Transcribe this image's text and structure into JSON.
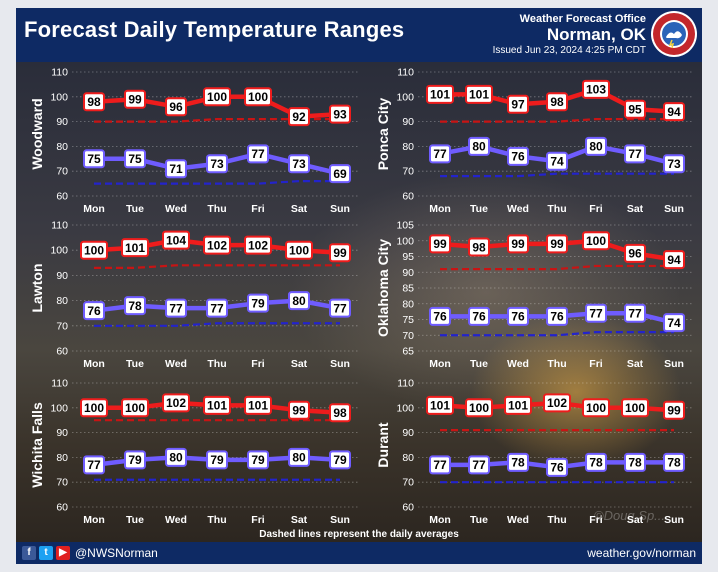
{
  "header": {
    "title": "Forecast Daily Temperature Ranges",
    "office_name": "Weather Forecast Office",
    "office_location": "Norman, OK",
    "issued": "Issued Jun 23, 2024 4:25 PM CDT",
    "seal_icon": "nws-seal-icon"
  },
  "footer": {
    "social_icons": [
      "facebook-icon",
      "twitter-icon",
      "youtube-icon"
    ],
    "handle": "@NWSNorman",
    "website": "weather.gov/norman",
    "note": "Dashed lines represent the daily averages",
    "watermark": "©Doug Sp..."
  },
  "colors": {
    "high": "#ee1c1c",
    "high_avg": "#c81414",
    "low": "#6f5cff",
    "low_avg": "#2323cc",
    "header_bg": "#0e2a64"
  },
  "chart_data": [
    {
      "type": "line",
      "location": "Woodward",
      "categories": [
        "Mon",
        "Tue",
        "Wed",
        "Thu",
        "Fri",
        "Sat",
        "Sun"
      ],
      "ylim": [
        60,
        110
      ],
      "yticks": [
        60,
        70,
        80,
        90,
        100,
        110
      ],
      "grid": true,
      "series": [
        {
          "role": "high",
          "values": [
            98,
            99,
            96,
            100,
            100,
            92,
            93
          ]
        },
        {
          "role": "low",
          "values": [
            75,
            75,
            71,
            73,
            77,
            73,
            69
          ]
        },
        {
          "role": "high_avg",
          "values": [
            90,
            90,
            90,
            91,
            91,
            91,
            91
          ]
        },
        {
          "role": "low_avg",
          "values": [
            65,
            65,
            65,
            65,
            65,
            66,
            66
          ]
        }
      ]
    },
    {
      "type": "line",
      "location": "Ponca City",
      "categories": [
        "Mon",
        "Tue",
        "Wed",
        "Thu",
        "Fri",
        "Sat",
        "Sun"
      ],
      "ylim": [
        60,
        110
      ],
      "yticks": [
        60,
        70,
        80,
        90,
        100,
        110
      ],
      "grid": true,
      "series": [
        {
          "role": "high",
          "values": [
            101,
            101,
            97,
            98,
            103,
            95,
            94
          ]
        },
        {
          "role": "low",
          "values": [
            77,
            80,
            76,
            74,
            80,
            77,
            73
          ]
        },
        {
          "role": "high_avg",
          "values": [
            90,
            90,
            90,
            90,
            91,
            91,
            91
          ]
        },
        {
          "role": "low_avg",
          "values": [
            68,
            68,
            68,
            69,
            69,
            69,
            69
          ]
        }
      ]
    },
    {
      "type": "line",
      "location": "Lawton",
      "categories": [
        "Mon",
        "Tue",
        "Wed",
        "Thu",
        "Fri",
        "Sat",
        "Sun"
      ],
      "ylim": [
        60,
        110
      ],
      "yticks": [
        60,
        70,
        80,
        90,
        100,
        110
      ],
      "grid": true,
      "series": [
        {
          "role": "high",
          "values": [
            100,
            101,
            104,
            102,
            102,
            100,
            99
          ]
        },
        {
          "role": "low",
          "values": [
            76,
            78,
            77,
            77,
            79,
            80,
            77
          ]
        },
        {
          "role": "high_avg",
          "values": [
            93,
            93,
            94,
            94,
            94,
            94,
            94
          ]
        },
        {
          "role": "low_avg",
          "values": [
            70,
            70,
            70,
            71,
            71,
            71,
            71
          ]
        }
      ]
    },
    {
      "type": "line",
      "location": "Oklahoma City",
      "categories": [
        "Mon",
        "Tue",
        "Wed",
        "Thu",
        "Fri",
        "Sat",
        "Sun"
      ],
      "ylim": [
        65,
        105
      ],
      "yticks": [
        65,
        70,
        75,
        80,
        85,
        90,
        95,
        100,
        105
      ],
      "grid": true,
      "series": [
        {
          "role": "high",
          "values": [
            99,
            98,
            99,
            99,
            100,
            96,
            94
          ]
        },
        {
          "role": "low",
          "values": [
            76,
            76,
            76,
            76,
            77,
            77,
            74
          ]
        },
        {
          "role": "high_avg",
          "values": [
            91,
            91,
            91,
            91,
            92,
            92,
            92
          ]
        },
        {
          "role": "low_avg",
          "values": [
            70,
            70,
            70,
            70,
            71,
            71,
            71
          ]
        }
      ]
    },
    {
      "type": "line",
      "location": "Wichita Falls",
      "categories": [
        "Mon",
        "Tue",
        "Wed",
        "Thu",
        "Fri",
        "Sat",
        "Sun"
      ],
      "ylim": [
        60,
        110
      ],
      "yticks": [
        60,
        70,
        80,
        90,
        100,
        110
      ],
      "grid": true,
      "series": [
        {
          "role": "high",
          "values": [
            100,
            100,
            102,
            101,
            101,
            99,
            98
          ]
        },
        {
          "role": "low",
          "values": [
            77,
            79,
            80,
            79,
            79,
            80,
            79
          ]
        },
        {
          "role": "high_avg",
          "values": [
            95,
            95,
            95,
            95,
            95,
            95,
            95
          ]
        },
        {
          "role": "low_avg",
          "values": [
            71,
            71,
            71,
            71,
            71,
            71,
            71
          ]
        }
      ]
    },
    {
      "type": "line",
      "location": "Durant",
      "categories": [
        "Mon",
        "Tue",
        "Wed",
        "Thu",
        "Fri",
        "Sat",
        "Sun"
      ],
      "ylim": [
        60,
        110
      ],
      "yticks": [
        60,
        70,
        80,
        90,
        100,
        110
      ],
      "grid": true,
      "series": [
        {
          "role": "high",
          "values": [
            101,
            100,
            101,
            102,
            100,
            100,
            99
          ]
        },
        {
          "role": "low",
          "values": [
            77,
            77,
            78,
            76,
            78,
            78,
            78
          ]
        },
        {
          "role": "high_avg",
          "values": [
            91,
            91,
            91,
            91,
            91,
            91,
            91
          ]
        },
        {
          "role": "low_avg",
          "values": [
            70,
            70,
            70,
            70,
            70,
            70,
            70
          ]
        }
      ]
    }
  ]
}
